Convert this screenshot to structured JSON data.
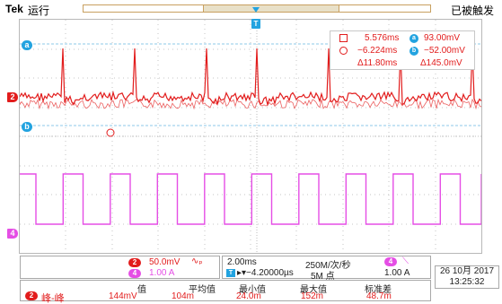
{
  "header": {
    "brand": "Tek",
    "run_state": "运行",
    "trigger_status": "已被触发"
  },
  "markers": {
    "ch2": "2",
    "ch4": "4",
    "cursor_a": "a",
    "cursor_b": "b",
    "trigger": "T"
  },
  "cursor_readout": {
    "row1_time": "5.576ms",
    "row1_value": "93.00mV",
    "row2_time": "−6.224ms",
    "row2_value": "−52.00mV",
    "row3_time": "Δ11.80ms",
    "row3_value": "Δ145.0mV",
    "icon_a": "a",
    "icon_b": "b"
  },
  "channels": {
    "ch2": {
      "badge": "2",
      "scale": "50.0mV",
      "bw": "∿ₚ"
    },
    "ch4": {
      "badge": "4",
      "scale": "1.00 A"
    }
  },
  "timebase": {
    "horizontal_scale": "2.00ms",
    "sample_rate": "250M/次/秒",
    "trigger_source_badge": "4",
    "trigger_slope": "⟍",
    "delay_icon": "T",
    "delay_value": "▸▾−4.20000µs",
    "record_length": "5M 点",
    "trigger_level": "1.00 A"
  },
  "datetime": {
    "date": "26 10月 2017",
    "time": "13:25:32"
  },
  "measurements": {
    "headers": [
      "值",
      "平均值",
      "最小值",
      "最大值",
      "标准差"
    ],
    "source_badge": "2",
    "name": "峰-峰",
    "values": [
      "144mV",
      "104m",
      "24.0m",
      "152m",
      "48.7m"
    ]
  },
  "colors": {
    "ch2": "#e21c1c",
    "ch4": "#e54ee5",
    "cursor": "#22a3e0"
  }
}
